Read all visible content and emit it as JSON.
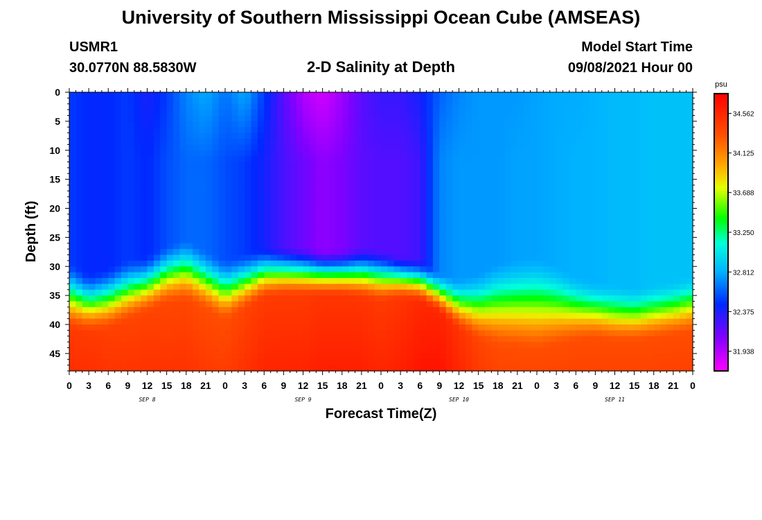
{
  "page": {
    "title_top": "University of Southern Mississippi Ocean Cube (AMSEAS)",
    "title_bottom": "University of Southern Mississippi Ocean Cube (AMSEAS)",
    "station": "USMR1",
    "coords": "30.0770N  88.5830W",
    "subtitle": "2-D Salinity at Depth",
    "run_label": "Model Start Time",
    "run_value": "09/08/2021 Hour 00"
  },
  "chart_data": {
    "type": "heatmap",
    "title": "2-D Salinity at Depth",
    "xlabel": "Forecast Time(Z)",
    "ylabel": "Depth (ft)",
    "xlim": [
      0,
      96
    ],
    "ylim": [
      0,
      48
    ],
    "x_ticks": [
      0,
      3,
      6,
      9,
      12,
      15,
      18,
      21,
      24,
      27,
      30,
      33,
      36,
      39,
      42,
      45,
      48,
      51,
      54,
      57,
      60,
      63,
      66,
      69,
      72,
      75,
      78,
      81,
      84,
      87,
      90,
      93,
      96
    ],
    "x_tick_labels": [
      "0",
      "3",
      "6",
      "9",
      "12",
      "15",
      "18",
      "21",
      "0",
      "3",
      "6",
      "9",
      "12",
      "15",
      "18",
      "21",
      "0",
      "3",
      "6",
      "9",
      "12",
      "15",
      "18",
      "21",
      "0",
      "3",
      "6",
      "9",
      "12",
      "15",
      "18",
      "21",
      "0"
    ],
    "y_ticks": [
      0,
      5,
      10,
      15,
      20,
      25,
      30,
      35,
      40,
      45
    ],
    "y_tick_labels": [
      "0",
      "5",
      "10",
      "15",
      "20",
      "25",
      "30",
      "35",
      "40",
      "45"
    ],
    "date_labels": [
      {
        "hour": 12,
        "text": "SEP 8"
      },
      {
        "hour": 36,
        "text": "SEP 9"
      },
      {
        "hour": 60,
        "text": "SEP 10"
      },
      {
        "hour": 84,
        "text": "SEP 11"
      }
    ],
    "colorbar": {
      "unit": "psu",
      "min": 31.72,
      "max": 34.78,
      "ticks": [
        31.938,
        32.375,
        32.812,
        33.25,
        33.688,
        34.125,
        34.562
      ],
      "tick_labels": [
        "31.938",
        "32.375",
        "32.812",
        "33.250",
        "33.688",
        "34.125",
        "34.562"
      ]
    },
    "columns": [
      {
        "hour": 0,
        "top": 32.5,
        "mid": 32.5,
        "thermo": 29.0,
        "high": 34.45,
        "depthHigh": 41.5
      },
      {
        "hour": 3,
        "top": 32.45,
        "mid": 32.45,
        "thermo": 31.0,
        "high": 34.45,
        "depthHigh": 42.0
      },
      {
        "hour": 6,
        "top": 32.45,
        "mid": 32.45,
        "thermo": 30.0,
        "high": 34.42,
        "depthHigh": 41.5
      },
      {
        "hour": 9,
        "top": 32.5,
        "mid": 32.5,
        "thermo": 28.5,
        "high": 34.4,
        "depthHigh": 40.0
      },
      {
        "hour": 12,
        "top": 32.38,
        "mid": 32.45,
        "thermo": 28.0,
        "high": 34.4,
        "depthHigh": 38.5
      },
      {
        "hour": 15,
        "top": 32.5,
        "mid": 32.55,
        "thermo": 26.0,
        "high": 34.38,
        "depthHigh": 37.0
      },
      {
        "hour": 18,
        "top": 32.7,
        "mid": 32.62,
        "thermo": 25.0,
        "high": 34.38,
        "depthHigh": 36.5
      },
      {
        "hour": 21,
        "top": 32.8,
        "mid": 32.62,
        "thermo": 27.0,
        "high": 34.35,
        "depthHigh": 38.0
      },
      {
        "hour": 24,
        "top": 32.65,
        "mid": 32.55,
        "thermo": 28.5,
        "high": 34.35,
        "depthHigh": 40.0
      },
      {
        "hour": 27,
        "top": 32.8,
        "mid": 32.5,
        "thermo": 27.5,
        "high": 34.4,
        "depthHigh": 38.0
      },
      {
        "hour": 30,
        "top": 32.5,
        "mid": 32.4,
        "thermo": 26.5,
        "high": 34.45,
        "depthHigh": 36.0
      },
      {
        "hour": 33,
        "top": 32.2,
        "mid": 32.25,
        "thermo": 26.5,
        "high": 34.45,
        "depthHigh": 35.5
      },
      {
        "hour": 36,
        "top": 31.95,
        "mid": 32.15,
        "thermo": 26.5,
        "high": 34.45,
        "depthHigh": 35.5
      },
      {
        "hour": 39,
        "top": 31.85,
        "mid": 32.05,
        "thermo": 27.0,
        "high": 34.48,
        "depthHigh": 35.5
      },
      {
        "hour": 42,
        "top": 32.0,
        "mid": 32.1,
        "thermo": 27.0,
        "high": 34.48,
        "depthHigh": 35.5
      },
      {
        "hour": 45,
        "top": 32.2,
        "mid": 32.2,
        "thermo": 26.5,
        "high": 34.48,
        "depthHigh": 36.0
      },
      {
        "hour": 48,
        "top": 32.3,
        "mid": 32.22,
        "thermo": 27.0,
        "high": 34.45,
        "depthHigh": 36.5
      },
      {
        "hour": 51,
        "top": 32.3,
        "mid": 32.22,
        "thermo": 28.0,
        "high": 34.48,
        "depthHigh": 36.0
      },
      {
        "hour": 54,
        "top": 32.4,
        "mid": 32.28,
        "thermo": 28.5,
        "high": 34.55,
        "depthHigh": 36.5
      },
      {
        "hour": 57,
        "top": 32.6,
        "mid": 32.7,
        "thermo": 31.0,
        "high": 34.58,
        "depthHigh": 38.5
      },
      {
        "hour": 60,
        "top": 32.7,
        "mid": 32.75,
        "thermo": 32.0,
        "high": 34.5,
        "depthHigh": 41.5
      },
      {
        "hour": 63,
        "top": 32.75,
        "mid": 32.75,
        "thermo": 31.0,
        "high": 34.4,
        "depthHigh": 43.5
      },
      {
        "hour": 66,
        "top": 32.75,
        "mid": 32.75,
        "thermo": 29.0,
        "high": 34.35,
        "depthHigh": 44.5
      },
      {
        "hour": 69,
        "top": 32.75,
        "mid": 32.78,
        "thermo": 28.5,
        "high": 34.35,
        "depthHigh": 45.0
      },
      {
        "hour": 72,
        "top": 32.78,
        "mid": 32.78,
        "thermo": 28.0,
        "high": 34.35,
        "depthHigh": 45.5
      },
      {
        "hour": 75,
        "top": 32.8,
        "mid": 32.8,
        "thermo": 29.5,
        "high": 34.35,
        "depthHigh": 44.5
      },
      {
        "hour": 78,
        "top": 32.8,
        "mid": 32.82,
        "thermo": 31.5,
        "high": 34.35,
        "depthHigh": 43.5
      },
      {
        "hour": 81,
        "top": 32.82,
        "mid": 32.82,
        "thermo": 32.5,
        "high": 34.35,
        "depthHigh": 43.0
      },
      {
        "hour": 84,
        "top": 32.85,
        "mid": 32.85,
        "thermo": 33.0,
        "high": 34.35,
        "depthHigh": 43.5
      },
      {
        "hour": 87,
        "top": 32.85,
        "mid": 32.85,
        "thermo": 33.5,
        "high": 34.35,
        "depthHigh": 43.5
      },
      {
        "hour": 90,
        "top": 32.88,
        "mid": 32.88,
        "thermo": 33.0,
        "high": 34.35,
        "depthHigh": 43.0
      },
      {
        "hour": 93,
        "top": 32.88,
        "mid": 32.88,
        "thermo": 32.5,
        "high": 34.35,
        "depthHigh": 42.5
      },
      {
        "hour": 96,
        "top": 32.88,
        "mid": 32.88,
        "thermo": 31.5,
        "high": 34.35,
        "depthHigh": 42.0
      }
    ]
  }
}
